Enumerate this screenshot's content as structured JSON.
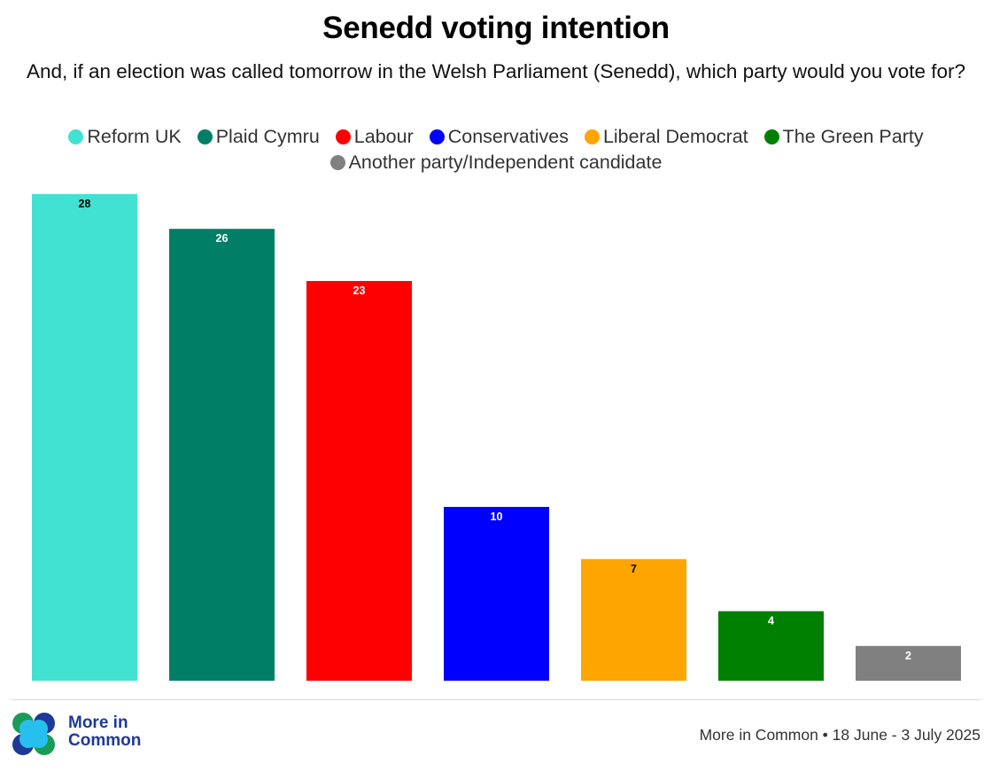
{
  "header": {
    "title": "Senedd voting intention",
    "subtitle": "And, if an election was called tomorrow in the Welsh Parliament (Senedd), which party would you vote for?"
  },
  "footer": {
    "logo_text_line1": "More in",
    "logo_text_line2": "Common",
    "source": "More in Common • 18 June - 3 July 2025",
    "logo_colors": {
      "green": "#1a9b57",
      "navy": "#1e3a96",
      "sky": "#27c0ee"
    }
  },
  "chart_data": {
    "type": "bar",
    "title": "Senedd voting intention",
    "subtitle": "And, if an election was called tomorrow in the Welsh Parliament (Senedd), which party would you vote for?",
    "xlabel": "",
    "ylabel": "",
    "ylim": [
      0,
      28
    ],
    "grid": false,
    "legend_position": "top-center",
    "categories": [
      "Reform UK",
      "Plaid Cymru",
      "Labour",
      "Conservatives",
      "Liberal Democrat",
      "The Green Party",
      "Another party/Independent candidate"
    ],
    "values": [
      28,
      26,
      23,
      10,
      7,
      4,
      2
    ],
    "colors": [
      "#42e2d2",
      "#007f66",
      "#ff0000",
      "#0000ff",
      "#ffa500",
      "#008000",
      "#808080"
    ],
    "label_colors": [
      "#000000",
      "#ffffff",
      "#ffffff",
      "#ffffff",
      "#000000",
      "#ffffff",
      "#ffffff"
    ],
    "data_labels": [
      "28",
      "26",
      "23",
      "10",
      "7",
      "4",
      "2"
    ]
  }
}
